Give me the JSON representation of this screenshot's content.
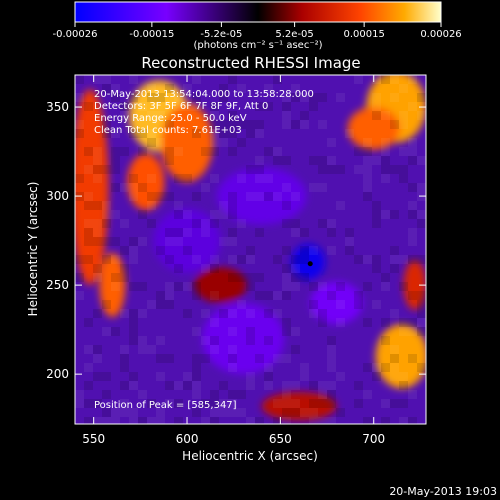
{
  "window_title": "Reconstructed RHESSI Image",
  "chart_data": {
    "type": "heatmap",
    "title": "Reconstructed RHESSI Image",
    "xlabel": "Heliocentric X (arcsec)",
    "ylabel": "Heliocentric Y (arcsec)",
    "xlim": [
      540,
      728
    ],
    "ylim": [
      172,
      368
    ],
    "x_ticks": [
      550,
      600,
      650,
      700
    ],
    "y_ticks": [
      200,
      250,
      300,
      350
    ],
    "colorbar": {
      "range": [
        -0.00026,
        0.00026
      ],
      "ticks": [
        "-0.00026",
        "-0.00015",
        "-5.2e-05",
        "5.2e-05",
        "0.00015",
        "0.00026"
      ],
      "label": "(photons cm⁻² s⁻¹ asec⁻²)",
      "colors": [
        "#0000ff",
        "#4000c0",
        "#7800ff",
        "#000000",
        "#aa0000",
        "#ff4400",
        "#ffaa00",
        "#ffffaa"
      ]
    },
    "annotations": [
      "20-May-2013 13:54:04.000 to 13:58:28.000",
      "Detectors: 3F 5F 6F 7F 8F 9F, Att 0",
      "Energy Range: 25.0 - 50.0 keV",
      "Clean     Total counts: 7.61E+03"
    ],
    "peak_label": "Position of Peak = [585,347]",
    "marker": {
      "x": 666,
      "y": 262
    },
    "regions": [
      {
        "x": 548,
        "y": 305,
        "rx": 10,
        "ry": 55,
        "value": 0.0001
      },
      {
        "x": 560,
        "y": 250,
        "rx": 7,
        "ry": 18,
        "value": 0.00013
      },
      {
        "x": 585,
        "y": 345,
        "rx": 16,
        "ry": 20,
        "value": 0.0002
      },
      {
        "x": 600,
        "y": 330,
        "rx": 14,
        "ry": 22,
        "value": 0.00013
      },
      {
        "x": 578,
        "y": 308,
        "rx": 10,
        "ry": 16,
        "value": 0.00012
      },
      {
        "x": 712,
        "y": 350,
        "rx": 16,
        "ry": 20,
        "value": 0.00018
      },
      {
        "x": 700,
        "y": 338,
        "rx": 14,
        "ry": 12,
        "value": 0.00013
      },
      {
        "x": 715,
        "y": 210,
        "rx": 14,
        "ry": 18,
        "value": 0.00018
      },
      {
        "x": 722,
        "y": 250,
        "rx": 6,
        "ry": 14,
        "value": 8e-05
      },
      {
        "x": 660,
        "y": 182,
        "rx": 20,
        "ry": 8,
        "value": 5e-05
      },
      {
        "x": 618,
        "y": 250,
        "rx": 14,
        "ry": 10,
        "value": 3e-05
      },
      {
        "x": 665,
        "y": 263,
        "rx": 9,
        "ry": 10,
        "value": -0.00024
      },
      {
        "x": 640,
        "y": 300,
        "rx": 24,
        "ry": 16,
        "value": -0.00014
      },
      {
        "x": 600,
        "y": 275,
        "rx": 18,
        "ry": 18,
        "value": -0.00015
      },
      {
        "x": 630,
        "y": 220,
        "rx": 22,
        "ry": 20,
        "value": -0.00013
      },
      {
        "x": 680,
        "y": 240,
        "rx": 14,
        "ry": 12,
        "value": -0.00012
      }
    ]
  },
  "footer": {
    "timestamp": "20-May-2013 19:03"
  }
}
